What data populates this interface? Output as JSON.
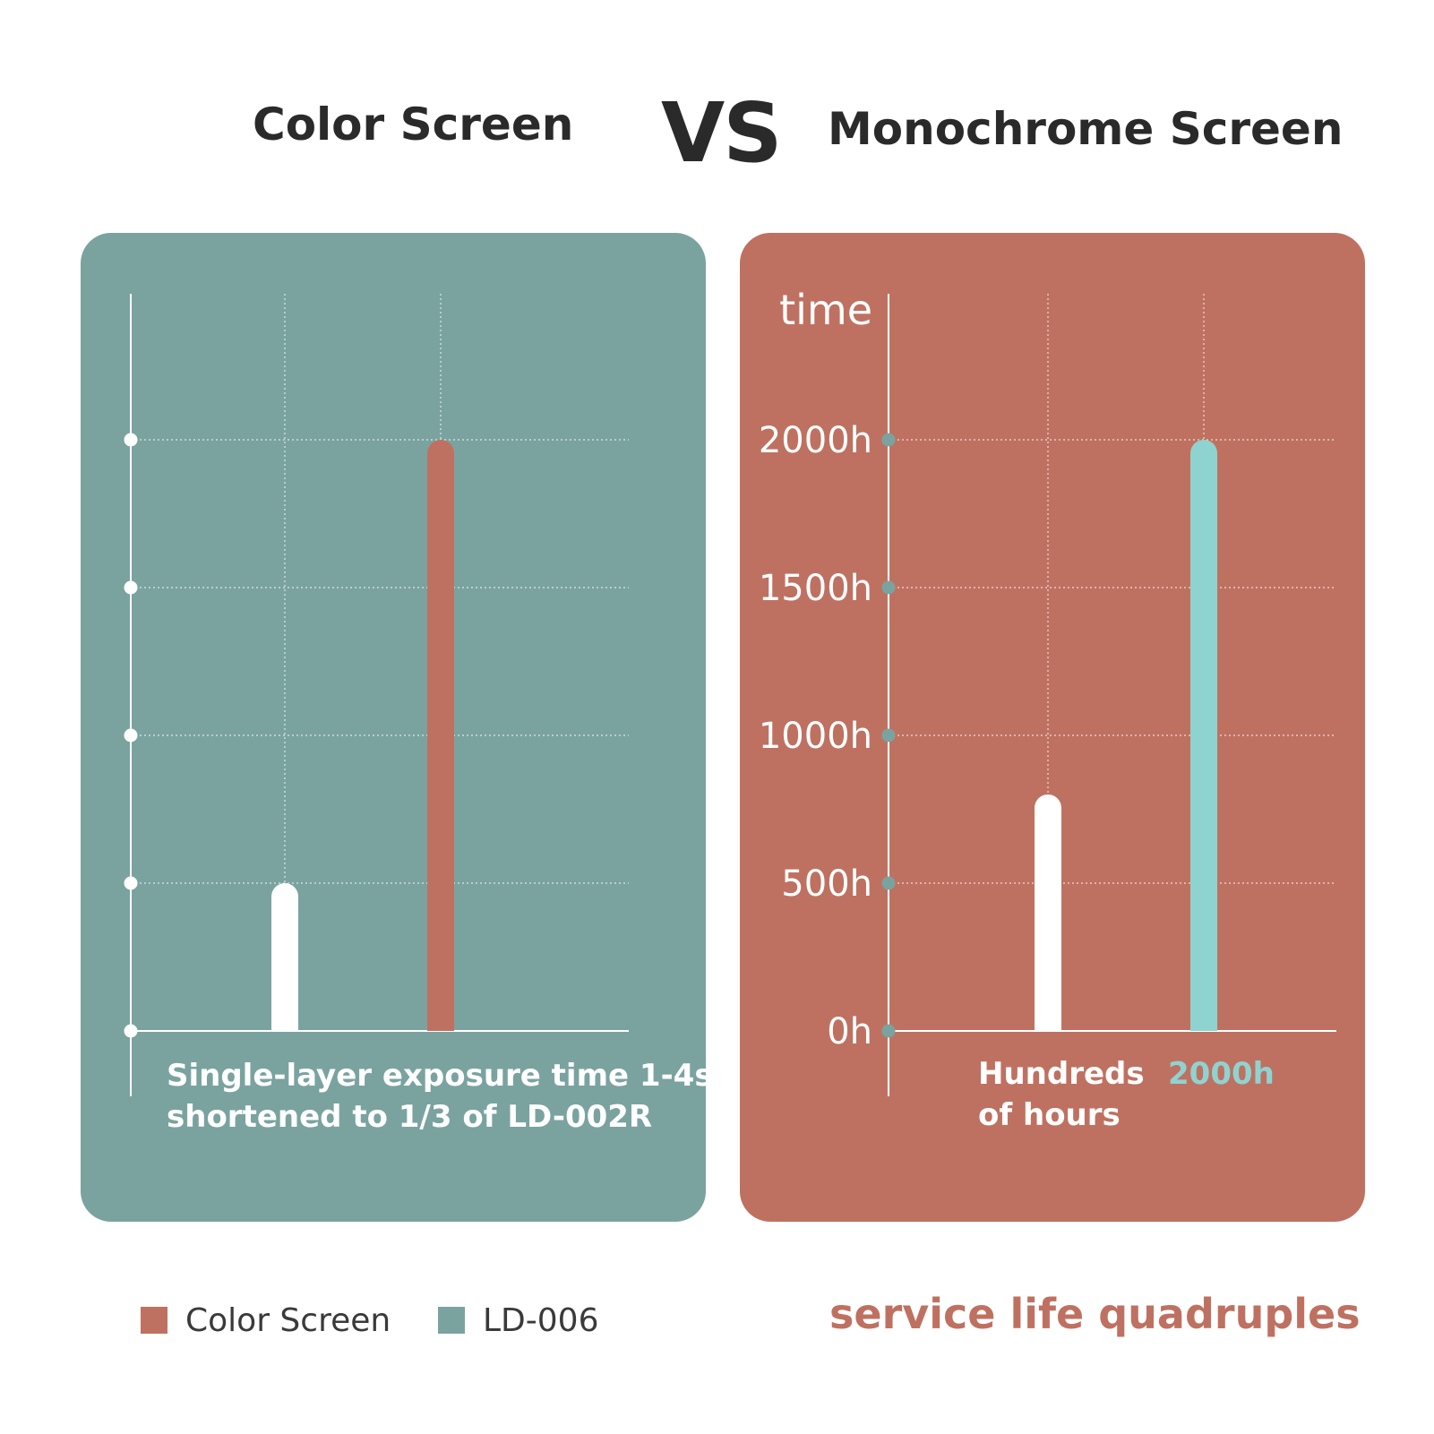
{
  "header": {
    "left_title": "Color Screen",
    "vs": "VS",
    "right_title": "Monochrome Screen"
  },
  "colors": {
    "teal_card": "#7aa3a0",
    "terracotta_card": "#bf7161",
    "white": "#ffffff",
    "light_teal_bar": "#8fd3d0",
    "text_dark": "#2a2a2a",
    "tagline": "#bf7161"
  },
  "chart_data": [
    {
      "type": "bar",
      "title": "",
      "categories": [
        "Color Screen",
        "LD-006"
      ],
      "values": [
        1,
        4
      ],
      "bar_colors": [
        "#ffffff",
        "#bf7161"
      ],
      "ylim": [
        0,
        4
      ],
      "yticks": [
        0,
        1,
        2,
        3,
        4
      ],
      "ytick_labels": [
        "",
        "",
        "",
        "",
        ""
      ],
      "ylabel": "",
      "grid": true,
      "annotation": [
        "Single-layer exposure time 1-4s",
        "shortened to 1/3 of LD-002R"
      ]
    },
    {
      "type": "bar",
      "title": "",
      "categories": [
        "Hundreds of hours",
        "2000h"
      ],
      "category_label_lines": [
        [
          "Hundreds",
          "of hours"
        ],
        [
          "2000h"
        ]
      ],
      "values": [
        800,
        2000
      ],
      "bar_colors": [
        "#ffffff",
        "#8fd3d0"
      ],
      "ylim": [
        0,
        2000
      ],
      "yticks": [
        0,
        500,
        1000,
        1500,
        2000
      ],
      "ytick_labels": [
        "0h",
        "500h",
        "1000h",
        "1500h",
        "2000h"
      ],
      "ylabel": "time",
      "grid": true
    }
  ],
  "legend": [
    {
      "label": "Color Screen",
      "color": "#bf7161"
    },
    {
      "label": "LD-006",
      "color": "#7aa3a0"
    }
  ],
  "tagline": "service life quadruples"
}
